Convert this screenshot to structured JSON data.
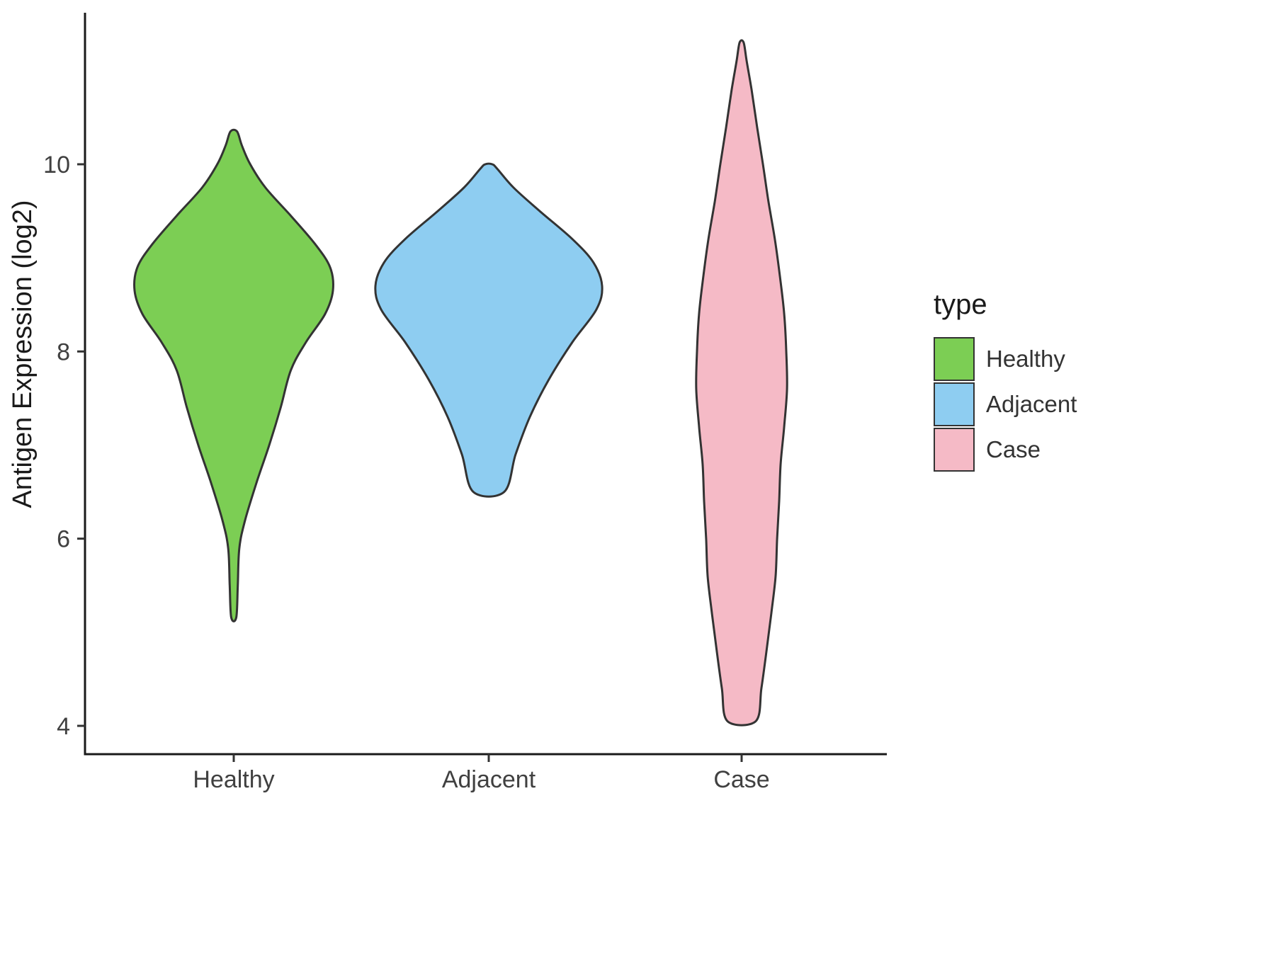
{
  "chart_data": {
    "type": "violin",
    "title": "",
    "xlabel": "",
    "ylabel": "Antigen Expression (log2)",
    "categories": [
      "Healthy",
      "Adjacent",
      "Case"
    ],
    "y_ticks": [
      "4",
      "6",
      "8",
      "10"
    ],
    "y_tick_values": [
      4,
      6,
      8,
      10
    ],
    "ylim": [
      3.7,
      11.6
    ],
    "grid": "off",
    "legend_title": "type",
    "legend_position": "right",
    "axis_color": "#1a1a1a",
    "text_color": "#404040",
    "stroke_color": "#333333",
    "width_unit": "halfwidth as fraction of category slot",
    "series": [
      {
        "name": "Healthy",
        "color": "#7CCE54",
        "min": 5.16,
        "max": 10.35,
        "peak": 8.65,
        "profile": [
          [
            5.16,
            0.01
          ],
          [
            5.5,
            0.016
          ],
          [
            5.9,
            0.022
          ],
          [
            6.2,
            0.045
          ],
          [
            6.6,
            0.09
          ],
          [
            7.0,
            0.14
          ],
          [
            7.4,
            0.185
          ],
          [
            7.8,
            0.225
          ],
          [
            8.1,
            0.285
          ],
          [
            8.4,
            0.36
          ],
          [
            8.65,
            0.391
          ],
          [
            8.9,
            0.38
          ],
          [
            9.15,
            0.32
          ],
          [
            9.45,
            0.225
          ],
          [
            9.75,
            0.125
          ],
          [
            10.0,
            0.065
          ],
          [
            10.2,
            0.032
          ],
          [
            10.35,
            0.013
          ]
        ]
      },
      {
        "name": "Adjacent",
        "color": "#8ECDF1",
        "min": 6.5,
        "max": 10.0,
        "peak": 8.7,
        "profile": [
          [
            6.5,
            0.061
          ],
          [
            6.9,
            0.106
          ],
          [
            7.3,
            0.162
          ],
          [
            7.7,
            0.237
          ],
          [
            8.1,
            0.33
          ],
          [
            8.45,
            0.425
          ],
          [
            8.7,
            0.447
          ],
          [
            8.95,
            0.413
          ],
          [
            9.2,
            0.33
          ],
          [
            9.5,
            0.201
          ],
          [
            9.75,
            0.098
          ],
          [
            9.95,
            0.034
          ],
          [
            10.0,
            0.014
          ]
        ]
      },
      {
        "name": "Case",
        "color": "#F5BAC6",
        "min": 4.05,
        "max": 11.3,
        "peak": 7.7,
        "profile": [
          [
            4.05,
            0.056
          ],
          [
            4.4,
            0.078
          ],
          [
            4.8,
            0.098
          ],
          [
            5.2,
            0.117
          ],
          [
            5.6,
            0.134
          ],
          [
            6.0,
            0.14
          ],
          [
            6.4,
            0.148
          ],
          [
            6.8,
            0.154
          ],
          [
            7.2,
            0.168
          ],
          [
            7.6,
            0.179
          ],
          [
            8.0,
            0.176
          ],
          [
            8.4,
            0.168
          ],
          [
            8.8,
            0.151
          ],
          [
            9.2,
            0.131
          ],
          [
            9.6,
            0.106
          ],
          [
            10.0,
            0.084
          ],
          [
            10.4,
            0.061
          ],
          [
            10.8,
            0.039
          ],
          [
            11.1,
            0.02
          ],
          [
            11.3,
            0.008
          ]
        ]
      }
    ]
  }
}
